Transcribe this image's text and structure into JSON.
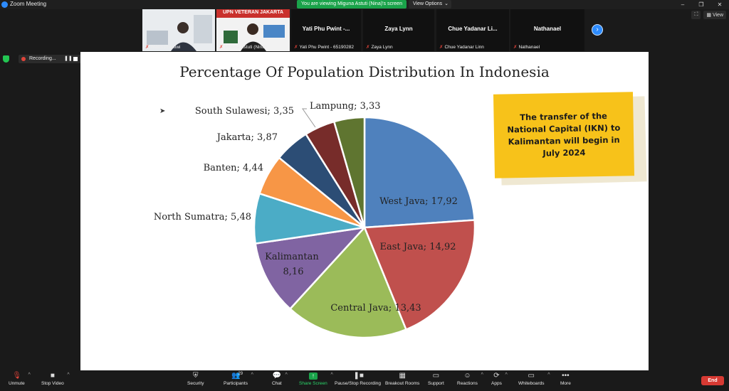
{
  "window": {
    "title": "Zoom Meeting",
    "viewing_banner": "You are viewing Miguna Astuti (Nina)'s screen",
    "view_options": "View Options"
  },
  "gallery": {
    "tiles": [
      {
        "name": "",
        "footer": "Wasis Prastiwi"
      },
      {
        "name": "",
        "footer": "Miguna Astuti (Nina)",
        "overlay_text": "UPN VETERAN JAKARTA"
      },
      {
        "name": "Yati Phu Pwint -...",
        "footer": "Yati Phu Pwint - 65190282"
      },
      {
        "name": "Zaya Lynn",
        "footer": "Zaya Lynn"
      },
      {
        "name": "Chue Yadanar Li...",
        "footer": "Chue Yadanar Linn"
      },
      {
        "name": "Nathanael",
        "footer": "Nathanael"
      }
    ],
    "view_label": "View"
  },
  "recording": {
    "label": "Recording..."
  },
  "slide": {
    "title": "Percentage Of Population Distribution In Indonesia",
    "callout": "The transfer of the National Capital (IKN) to Kalimantan will begin in July 2024"
  },
  "chart_data": {
    "type": "pie",
    "title": "Percentage Of Population Distribution In Indonesia",
    "slices": [
      {
        "label": "West Java",
        "value": 17.92,
        "display": "West Java; 17,92",
        "color": "#4f81bd"
      },
      {
        "label": "East Java",
        "value": 14.92,
        "display": "East Java; 14,92",
        "color": "#c0504d"
      },
      {
        "label": "Central Java",
        "value": 13.43,
        "display": "Central Java; 13,43",
        "color": "#9bbb59"
      },
      {
        "label": "Kalimantan",
        "value": 8.16,
        "display": "Kalimantan ; 8,16",
        "color": "#8064a2"
      },
      {
        "label": "North Sumatra",
        "value": 5.48,
        "display": "North Sumatra; 5,48",
        "color": "#4bacc6"
      },
      {
        "label": "Banten",
        "value": 4.44,
        "display": "Banten; 4,44",
        "color": "#f79646"
      },
      {
        "label": "Jakarta",
        "value": 3.87,
        "display": "Jakarta; 3,87",
        "color": "#2c4d75"
      },
      {
        "label": "South Sulawesi",
        "value": 3.35,
        "display": "South Sulawesi; 3,35",
        "color": "#772c2a"
      },
      {
        "label": "Lampung",
        "value": 3.33,
        "display": "Lampung; 3,33",
        "color": "#5f7530"
      }
    ]
  },
  "toolbar": {
    "unmute": "Unmute",
    "stop_video": "Stop Video",
    "security": "Security",
    "participants": "Participants",
    "participants_count": "29",
    "chat": "Chat",
    "share_screen": "Share Screen",
    "pause_recording": "Pause/Stop Recording",
    "breakout_rooms": "Breakout Rooms",
    "support": "Support",
    "reactions": "Reactions",
    "apps": "Apps",
    "whiteboards": "Whiteboards",
    "more": "More",
    "end": "End"
  }
}
